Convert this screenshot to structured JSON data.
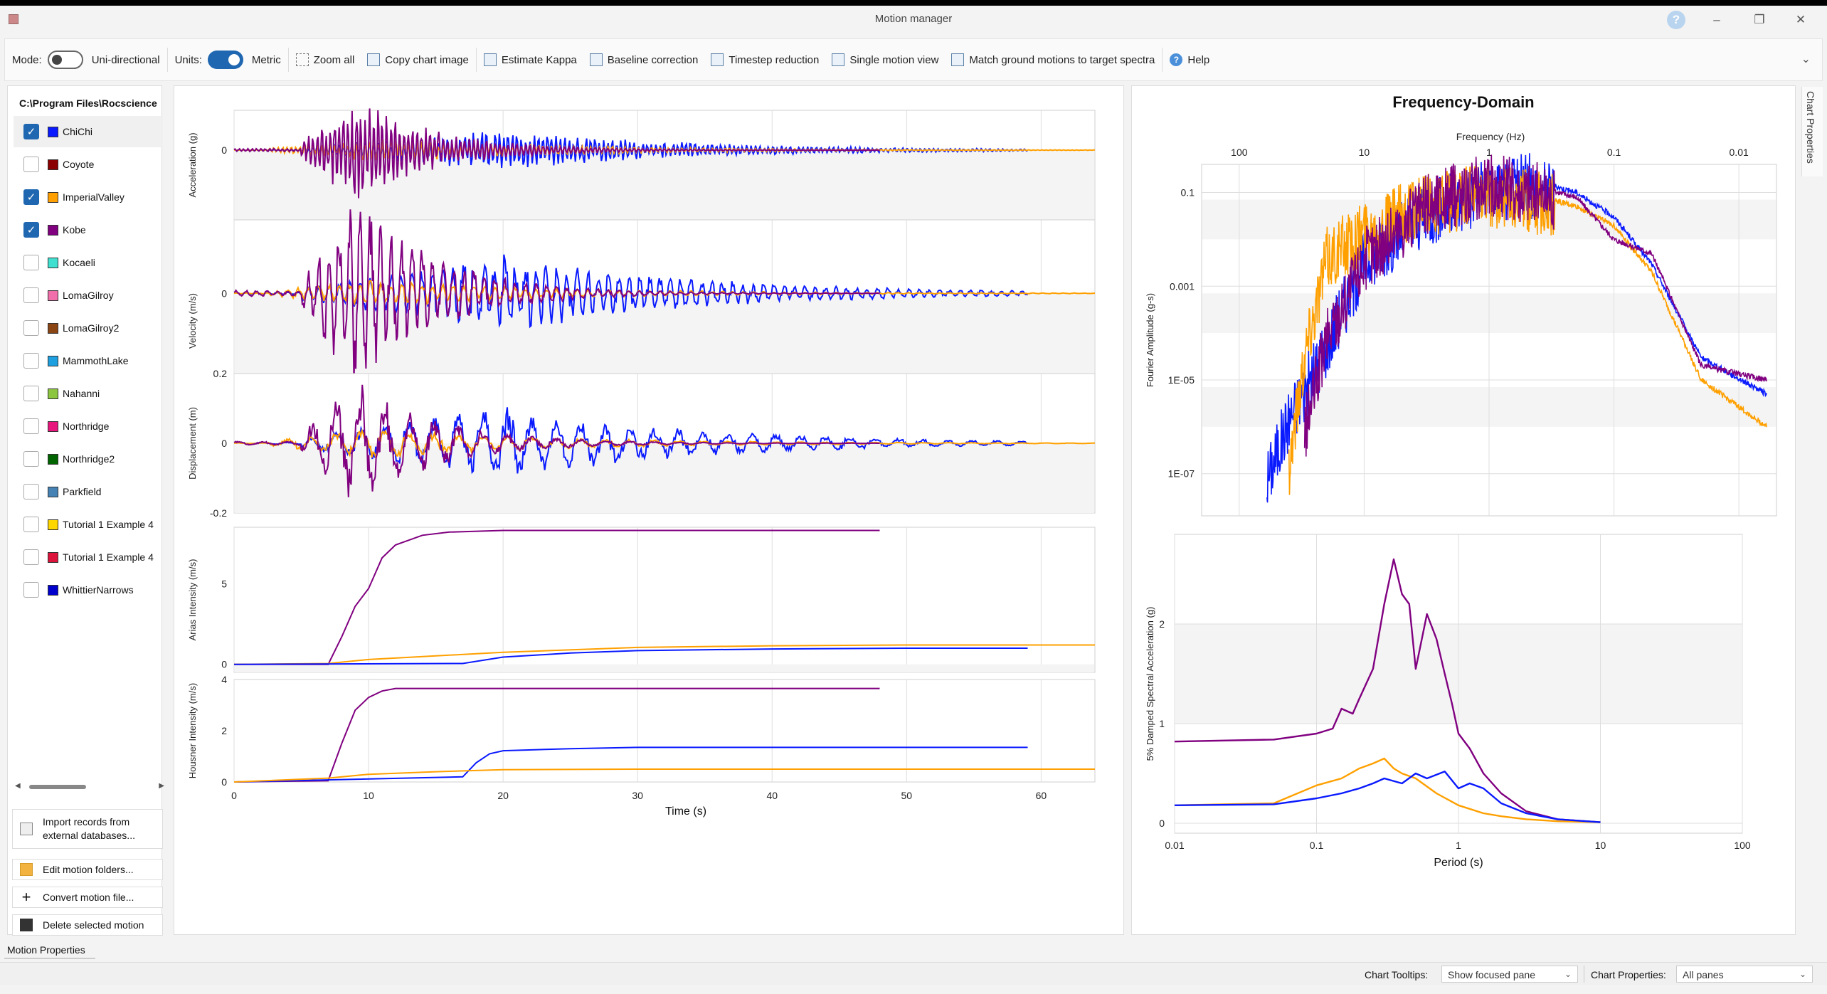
{
  "window": {
    "title": "Motion manager"
  },
  "toolbar": {
    "mode_label": "Mode:",
    "mode_value": "Uni-directional",
    "units_label": "Units:",
    "units_value": "Metric",
    "zoom_all": "Zoom all",
    "copy_chart": "Copy chart image",
    "estimate_kappa": "Estimate Kappa",
    "baseline": "Baseline correction",
    "timestep": "Timestep reduction",
    "single_motion": "Single motion view",
    "match": "Match ground motions to target spectra",
    "help": "Help"
  },
  "sidebar": {
    "folder": "C:\\Program Files\\Rocscience",
    "motions": [
      {
        "name": "ChiChi",
        "color": "#0a1aff",
        "checked": true
      },
      {
        "name": "Coyote",
        "color": "#8b0000",
        "checked": false
      },
      {
        "name": "ImperialValley",
        "color": "#ffa000",
        "checked": true
      },
      {
        "name": "Kobe",
        "color": "#800080",
        "checked": true
      },
      {
        "name": "Kocaeli",
        "color": "#40e0d0",
        "checked": false
      },
      {
        "name": "LomaGilroy",
        "color": "#f06ea9",
        "checked": false
      },
      {
        "name": "LomaGilroy2",
        "color": "#8b4513",
        "checked": false
      },
      {
        "name": "MammothLake",
        "color": "#1ea0e0",
        "checked": false
      },
      {
        "name": "Nahanni",
        "color": "#8cc63f",
        "checked": false
      },
      {
        "name": "Northridge",
        "color": "#e8177e",
        "checked": false
      },
      {
        "name": "Northridge2",
        "color": "#006400",
        "checked": false
      },
      {
        "name": "Parkfield",
        "color": "#4682b4",
        "checked": false
      },
      {
        "name": "Tutorial 1 Example 4",
        "color": "#ffd700",
        "checked": false
      },
      {
        "name": "Tutorial 1 Example 4",
        "color": "#dc143c",
        "checked": false
      },
      {
        "name": "WhittierNarrows",
        "color": "#0000cd",
        "checked": false
      }
    ],
    "buttons": {
      "import": "Import records from external databases...",
      "edit": "Edit motion folders...",
      "convert": "Convert motion file...",
      "delete": "Delete selected motion"
    }
  },
  "bottom": {
    "motion_properties_tab": "Motion Properties",
    "chart_properties_tab": "Chart Properties",
    "tooltips_label": "Chart Tooltips:",
    "tooltips_value": "Show focused pane",
    "chart_props_label": "Chart Properties:",
    "chart_props_value": "All panes"
  },
  "chart_data": [
    {
      "type": "line",
      "panel": "time-domain",
      "xlabel": "Time (s)",
      "xlim": [
        0,
        64
      ],
      "xticks": [
        0,
        10,
        20,
        30,
        40,
        50,
        60
      ],
      "subplots": [
        {
          "ylabel": "Acceleration (g)",
          "yticks": [
            "0"
          ],
          "series": [
            {
              "name": "ChiChi",
              "color": "#0a1aff",
              "kind": "oscillation",
              "end": 59,
              "peak_amp": 0.3
            },
            {
              "name": "ImperialValley",
              "color": "#ffa000",
              "kind": "oscillation",
              "end": 64,
              "peak_amp": 0.2
            },
            {
              "name": "Kobe",
              "color": "#800080",
              "kind": "oscillation",
              "end": 48,
              "peak_amp": 0.8
            }
          ]
        },
        {
          "ylabel": "Velocity (m/s)",
          "yticks": [
            "0"
          ],
          "series": [
            {
              "name": "ChiChi",
              "color": "#0a1aff",
              "kind": "oscillation",
              "end": 59,
              "peak_amp": 0.35
            },
            {
              "name": "ImperialValley",
              "color": "#ffa000",
              "kind": "oscillation",
              "end": 64,
              "peak_amp": 0.12
            },
            {
              "name": "Kobe",
              "color": "#800080",
              "kind": "oscillation",
              "end": 48,
              "peak_amp": 0.85
            }
          ]
        },
        {
          "ylabel": "Displacement (m)",
          "ylim": [
            -0.2,
            0.2
          ],
          "yticks": [
            "0.2",
            "0",
            "-0.2"
          ],
          "series": [
            {
              "name": "ChiChi",
              "color": "#0a1aff",
              "kind": "oscillation",
              "end": 59,
              "peak_amp": 0.1
            },
            {
              "name": "ImperialValley",
              "color": "#ffa000",
              "kind": "oscillation",
              "end": 64,
              "peak_amp": 0.04
            },
            {
              "name": "Kobe",
              "color": "#800080",
              "kind": "oscillation",
              "end": 48,
              "peak_amp": 0.17
            }
          ]
        },
        {
          "ylabel": "Arias Intensity (m/s)",
          "ylim": [
            -0.5,
            8.5
          ],
          "yticks": [
            "0",
            "5"
          ],
          "series": [
            {
              "name": "Kobe",
              "color": "#800080",
              "x": [
                0,
                7,
                8,
                9,
                10,
                11,
                12,
                14,
                16,
                20,
                48
              ],
              "y": [
                0,
                0,
                1.7,
                3.6,
                4.7,
                6.6,
                7.4,
                8.0,
                8.2,
                8.3,
                8.3
              ]
            },
            {
              "name": "ImperialValley",
              "color": "#ffa000",
              "x": [
                0,
                7,
                10,
                20,
                30,
                40,
                50,
                64
              ],
              "y": [
                0,
                0.05,
                0.3,
                0.75,
                1.05,
                1.15,
                1.2,
                1.2
              ]
            },
            {
              "name": "ChiChi",
              "color": "#0a1aff",
              "x": [
                0,
                17,
                20,
                25,
                30,
                40,
                50,
                59
              ],
              "y": [
                0,
                0.05,
                0.45,
                0.7,
                0.85,
                0.95,
                1.0,
                1.0
              ]
            }
          ]
        },
        {
          "ylabel": "Housner Intensity (m/s)",
          "ylim": [
            0,
            4
          ],
          "yticks": [
            "0",
            "2",
            "4"
          ],
          "series": [
            {
              "name": "Kobe",
              "color": "#800080",
              "x": [
                0,
                7,
                8,
                9,
                10,
                11,
                12,
                48
              ],
              "y": [
                0,
                0.05,
                1.5,
                2.8,
                3.3,
                3.55,
                3.65,
                3.65
              ]
            },
            {
              "name": "ChiChi",
              "color": "#0a1aff",
              "x": [
                0,
                17,
                18,
                19,
                20,
                25,
                30,
                59
              ],
              "y": [
                0,
                0.2,
                0.75,
                1.1,
                1.22,
                1.3,
                1.35,
                1.35
              ]
            },
            {
              "name": "ImperialValley",
              "color": "#ffa000",
              "x": [
                0,
                7,
                10,
                15,
                20,
                30,
                64
              ],
              "y": [
                0,
                0.15,
                0.3,
                0.4,
                0.48,
                0.5,
                0.5
              ]
            }
          ]
        }
      ]
    },
    {
      "type": "line",
      "panel": "frequency-domain",
      "title": "Frequency-Domain",
      "xlabel": "Frequency (Hz)",
      "ylabel": "Fourier Amplitude (g-s)",
      "x_scale": "log-reversed",
      "xlim": [
        200,
        0.005
      ],
      "xticks": [
        "100",
        "10",
        "1",
        "0.1",
        "0.01"
      ],
      "y_scale": "log",
      "yticks": [
        "0.1",
        "0.001",
        "1E-05",
        "1E-07"
      ],
      "series": [
        {
          "name": "ChiChi",
          "color": "#0a1aff",
          "x": [
            60,
            40,
            25,
            10,
            3,
            1,
            0.5,
            0.2,
            0.1,
            0.05,
            0.02,
            0.006
          ],
          "y": [
            1e-07,
            2e-06,
            2e-05,
            0.005,
            0.05,
            0.15,
            0.2,
            0.1,
            0.03,
            0.003,
            3e-05,
            5e-06
          ]
        },
        {
          "name": "ImperialValley",
          "color": "#ffa000",
          "x": [
            40,
            30,
            20,
            10,
            3,
            1,
            0.5,
            0.2,
            0.1,
            0.05,
            0.02,
            0.006
          ],
          "y": [
            2e-07,
            5e-05,
            0.005,
            0.02,
            0.08,
            0.12,
            0.1,
            0.05,
            0.02,
            0.002,
            1e-05,
            1e-06
          ]
        },
        {
          "name": "Kobe",
          "color": "#800080",
          "x": [
            30,
            20,
            10,
            3,
            1,
            0.5,
            0.2,
            0.1,
            0.05,
            0.02,
            0.006
          ],
          "y": [
            1e-06,
            0.0001,
            0.005,
            0.08,
            0.2,
            0.15,
            0.08,
            0.01,
            0.005,
            2e-05,
            1e-05
          ]
        }
      ]
    },
    {
      "type": "line",
      "panel": "response-spectra",
      "xlabel": "Period (s)",
      "ylabel": "5% Damped Spectral Acceleration (g)",
      "x_scale": "log",
      "xlim": [
        0.01,
        100
      ],
      "xticks": [
        "0.01",
        "0.1",
        "1",
        "10",
        "100"
      ],
      "ylim": [
        -0.1,
        2.9
      ],
      "yticks": [
        "0",
        "1",
        "2"
      ],
      "series": [
        {
          "name": "Kobe",
          "color": "#800080",
          "x": [
            0.01,
            0.05,
            0.1,
            0.13,
            0.15,
            0.18,
            0.2,
            0.25,
            0.3,
            0.35,
            0.4,
            0.45,
            0.5,
            0.6,
            0.7,
            0.8,
            0.9,
            1.0,
            1.2,
            1.5,
            2,
            3,
            5,
            10
          ],
          "y": [
            0.82,
            0.84,
            0.9,
            0.95,
            1.15,
            1.1,
            1.25,
            1.55,
            2.2,
            2.65,
            2.3,
            2.2,
            1.55,
            2.1,
            1.85,
            1.5,
            1.2,
            0.9,
            0.75,
            0.5,
            0.3,
            0.12,
            0.04,
            0.01
          ]
        },
        {
          "name": "ImperialValley",
          "color": "#ffa000",
          "x": [
            0.01,
            0.05,
            0.1,
            0.15,
            0.2,
            0.25,
            0.3,
            0.35,
            0.4,
            0.5,
            0.7,
            1.0,
            1.5,
            2,
            3,
            5,
            10
          ],
          "y": [
            0.18,
            0.2,
            0.38,
            0.45,
            0.55,
            0.6,
            0.65,
            0.55,
            0.5,
            0.45,
            0.3,
            0.18,
            0.1,
            0.07,
            0.04,
            0.02,
            0.01
          ]
        },
        {
          "name": "ChiChi",
          "color": "#0a1aff",
          "x": [
            0.01,
            0.05,
            0.1,
            0.15,
            0.2,
            0.25,
            0.3,
            0.4,
            0.5,
            0.6,
            0.8,
            1.0,
            1.2,
            1.5,
            2,
            3,
            5,
            10
          ],
          "y": [
            0.18,
            0.19,
            0.25,
            0.3,
            0.35,
            0.4,
            0.45,
            0.4,
            0.5,
            0.45,
            0.52,
            0.35,
            0.4,
            0.35,
            0.2,
            0.1,
            0.04,
            0.01
          ]
        }
      ]
    }
  ]
}
